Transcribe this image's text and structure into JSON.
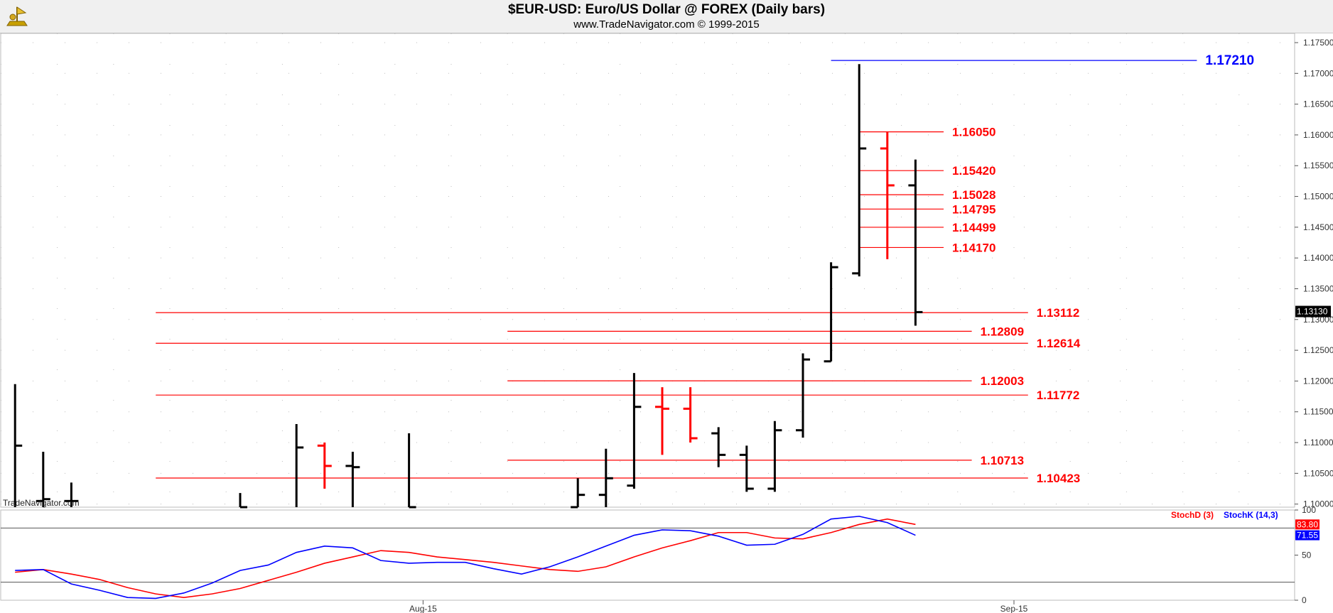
{
  "header": {
    "title": "$EUR-USD:  Euro/US Dollar @ FOREX  (Daily bars)",
    "subtitle": "www.TradeNavigator.com © 1999-2015"
  },
  "watermark": "TradeNavigator.com",
  "colors": {
    "up_bar": "#000000",
    "highlight_bar": "#ff0000",
    "level_red": "#ff0000",
    "level_blue": "#0000ff",
    "stoch_d": "#ff0000",
    "stoch_k": "#0000ff"
  },
  "chart_data": [
    {
      "type": "ohlc",
      "title": "$EUR-USD:  Euro/US Dollar @ FOREX  (Daily bars)",
      "ylim": [
        1.0995,
        1.1765
      ],
      "y_ticks": [
        "1.17500",
        "1.17000",
        "1.16500",
        "1.16000",
        "1.15500",
        "1.15000",
        "1.14500",
        "1.14000",
        "1.13500",
        "1.13000",
        "1.12500",
        "1.12000",
        "1.11500",
        "1.11000",
        "1.10500",
        "1.10000"
      ],
      "x_ticks": [
        {
          "index": 14.5,
          "label": "Aug-15"
        },
        {
          "index": 35.5,
          "label": "Sep-15"
        }
      ],
      "last_price": "1.13130",
      "bars": [
        {
          "i": 0,
          "o": 1.098,
          "h": 1.1195,
          "l": 1.098,
          "c": 1.1095,
          "color": "black"
        },
        {
          "i": 1,
          "o": 1.1005,
          "h": 1.1085,
          "l": 1.0985,
          "c": 1.1008,
          "color": "black"
        },
        {
          "i": 2,
          "o": 1.1005,
          "h": 1.1035,
          "l": 1.0985,
          "c": 1.1005,
          "color": "black"
        },
        {
          "i": 8,
          "o": 1.0985,
          "h": 1.1018,
          "l": 1.0985,
          "c": 1.0995,
          "color": "black"
        },
        {
          "i": 10,
          "o": 1.0985,
          "h": 1.113,
          "l": 1.0985,
          "c": 1.1092,
          "color": "black"
        },
        {
          "i": 11,
          "o": 1.1095,
          "h": 1.11,
          "l": 1.1025,
          "c": 1.1062,
          "color": "red"
        },
        {
          "i": 12,
          "o": 1.1062,
          "h": 1.1085,
          "l": 1.099,
          "c": 1.106,
          "color": "black"
        },
        {
          "i": 14,
          "o": 1.0985,
          "h": 1.1115,
          "l": 1.0985,
          "c": 1.0995,
          "color": "black"
        },
        {
          "i": 20,
          "o": 1.0995,
          "h": 1.1042,
          "l": 1.0995,
          "c": 1.1015,
          "color": "black"
        },
        {
          "i": 21,
          "o": 1.1015,
          "h": 1.109,
          "l": 1.0995,
          "c": 1.1042,
          "color": "black"
        },
        {
          "i": 22,
          "o": 1.103,
          "h": 1.1213,
          "l": 1.1025,
          "c": 1.1158,
          "color": "black"
        },
        {
          "i": 23,
          "o": 1.1158,
          "h": 1.119,
          "l": 1.108,
          "c": 1.1155,
          "color": "red"
        },
        {
          "i": 24,
          "o": 1.1155,
          "h": 1.119,
          "l": 1.11,
          "c": 1.1107,
          "color": "red"
        },
        {
          "i": 25,
          "o": 1.1115,
          "h": 1.1125,
          "l": 1.106,
          "c": 1.108,
          "color": "black"
        },
        {
          "i": 26,
          "o": 1.108,
          "h": 1.1095,
          "l": 1.102,
          "c": 1.1025,
          "color": "black"
        },
        {
          "i": 27,
          "o": 1.1025,
          "h": 1.1135,
          "l": 1.102,
          "c": 1.112,
          "color": "black"
        },
        {
          "i": 28,
          "o": 1.112,
          "h": 1.1245,
          "l": 1.1108,
          "c": 1.1235,
          "color": "black"
        },
        {
          "i": 29,
          "o": 1.1232,
          "h": 1.1393,
          "l": 1.1232,
          "c": 1.1385,
          "color": "black"
        },
        {
          "i": 30,
          "o": 1.1375,
          "h": 1.1715,
          "l": 1.137,
          "c": 1.1578,
          "color": "black"
        },
        {
          "i": 31,
          "o": 1.1578,
          "h": 1.1605,
          "l": 1.1398,
          "c": 1.1518,
          "color": "red"
        },
        {
          "i": 32,
          "o": 1.1518,
          "h": 1.156,
          "l": 1.129,
          "c": 1.1312,
          "color": "black"
        }
      ],
      "levels": [
        {
          "value": 1.1721,
          "label": "1.17210",
          "start": 29.0,
          "end": 42.0,
          "color": "blue"
        },
        {
          "value": 1.1605,
          "label": "1.16050",
          "start": 30.0,
          "end": 33.0,
          "color": "red"
        },
        {
          "value": 1.1542,
          "label": "1.15420",
          "start": 30.0,
          "end": 33.0,
          "color": "red"
        },
        {
          "value": 1.15028,
          "label": "1.15028",
          "start": 30.0,
          "end": 33.0,
          "color": "red"
        },
        {
          "value": 1.14795,
          "label": "1.14795",
          "start": 30.0,
          "end": 33.0,
          "color": "red"
        },
        {
          "value": 1.14499,
          "label": "1.14499",
          "start": 30.0,
          "end": 33.0,
          "color": "red"
        },
        {
          "value": 1.1417,
          "label": "1.14170",
          "start": 30.0,
          "end": 33.0,
          "color": "red"
        },
        {
          "value": 1.13112,
          "label": "1.13112",
          "start": 5.0,
          "end": 36.0,
          "color": "red"
        },
        {
          "value": 1.12809,
          "label": "1.12809",
          "start": 17.5,
          "end": 34.0,
          "color": "red"
        },
        {
          "value": 1.12614,
          "label": "1.12614",
          "start": 5.0,
          "end": 36.0,
          "color": "red"
        },
        {
          "value": 1.12003,
          "label": "1.12003",
          "start": 17.5,
          "end": 34.0,
          "color": "red"
        },
        {
          "value": 1.11772,
          "label": "1.11772",
          "start": 5.0,
          "end": 36.0,
          "color": "red"
        },
        {
          "value": 1.10713,
          "label": "1.10713",
          "start": 17.5,
          "end": 34.0,
          "color": "red"
        },
        {
          "value": 1.10423,
          "label": "1.10423",
          "start": 5.0,
          "end": 36.0,
          "color": "red"
        }
      ]
    },
    {
      "type": "line",
      "ylim": [
        0,
        100
      ],
      "y_ticks": [
        "100",
        "50",
        "0"
      ],
      "overbought": 80,
      "oversold": 20,
      "series": [
        {
          "name": "StochD (3)",
          "color": "red",
          "last": "83.80",
          "points": [
            [
              0,
              31
            ],
            [
              1,
              34
            ],
            [
              2,
              29
            ],
            [
              3,
              23
            ],
            [
              4,
              14
            ],
            [
              5,
              7
            ],
            [
              6,
              3
            ],
            [
              7,
              7
            ],
            [
              8,
              13
            ],
            [
              9,
              22
            ],
            [
              10,
              31
            ],
            [
              11,
              41
            ],
            [
              12,
              48
            ],
            [
              13,
              55
            ],
            [
              14,
              53
            ],
            [
              15,
              48
            ],
            [
              16,
              45
            ],
            [
              17,
              42
            ],
            [
              18,
              38
            ],
            [
              19,
              34
            ],
            [
              20,
              32
            ],
            [
              21,
              37
            ],
            [
              22,
              48
            ],
            [
              23,
              58
            ],
            [
              24,
              66
            ],
            [
              25,
              75
            ],
            [
              26,
              75
            ],
            [
              27,
              69
            ],
            [
              28,
              68
            ],
            [
              29,
              75
            ],
            [
              30,
              84
            ],
            [
              31,
              90
            ],
            [
              32,
              84
            ]
          ]
        },
        {
          "name": "StochK (14,3)",
          "color": "blue",
          "last": "71.55",
          "points": [
            [
              0,
              33
            ],
            [
              1,
              34
            ],
            [
              2,
              18
            ],
            [
              3,
              11
            ],
            [
              4,
              3
            ],
            [
              5,
              2
            ],
            [
              6,
              8
            ],
            [
              7,
              19
            ],
            [
              8,
              33
            ],
            [
              9,
              39
            ],
            [
              10,
              53
            ],
            [
              11,
              60
            ],
            [
              12,
              58
            ],
            [
              13,
              44
            ],
            [
              14,
              41
            ],
            [
              15,
              42
            ],
            [
              16,
              42
            ],
            [
              17,
              35
            ],
            [
              18,
              29
            ],
            [
              19,
              37
            ],
            [
              20,
              48
            ],
            [
              21,
              60
            ],
            [
              22,
              72
            ],
            [
              23,
              78
            ],
            [
              24,
              77
            ],
            [
              25,
              71
            ],
            [
              26,
              61
            ],
            [
              27,
              62
            ],
            [
              28,
              73
            ],
            [
              29,
              90
            ],
            [
              30,
              93
            ],
            [
              31,
              86
            ],
            [
              32,
              72
            ]
          ]
        }
      ]
    }
  ]
}
